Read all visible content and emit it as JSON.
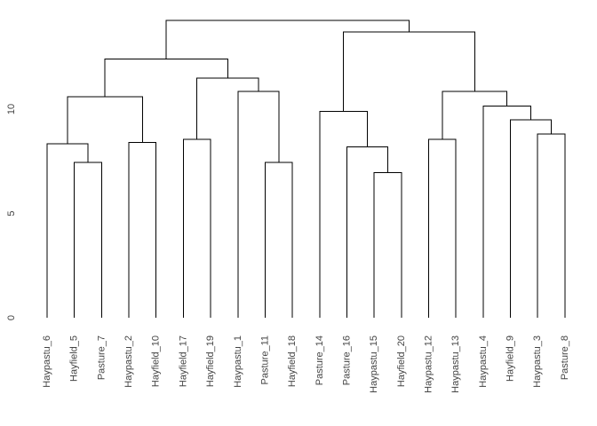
{
  "figure": {
    "background_color": "#ffffff",
    "line_color": "#000000",
    "text_color": "#444444"
  },
  "chart_data": {
    "type": "dendrogram",
    "orientation": "vertical",
    "title": "",
    "xlabel": "",
    "ylabel": "",
    "grid": false,
    "legend": false,
    "y_axis": {
      "ticks": [
        0,
        5,
        10
      ],
      "range": [
        0,
        14.5
      ],
      "label_rotation_deg": -90
    },
    "leaf_label_rotation_deg": -90,
    "leaves": [
      "Haypastu_6",
      "Hayfield_5",
      "Pasture_7",
      "Haypastu_2",
      "Hayfield_10",
      "Hayfield_17",
      "Hayfield_19",
      "Haypastu_1",
      "Pasture_11",
      "Hayfield_18",
      "Pasture_14",
      "Pasture_16",
      "Haypastu_15",
      "Hayfield_20",
      "Haypastu_12",
      "Haypastu_13",
      "Haypastu_4",
      "Hayfield_9",
      "Haypastu_3",
      "Pasture_8"
    ],
    "tree": {
      "h": 14.25,
      "c": [
        {
          "h": 12.4,
          "c": [
            {
              "h": 10.6,
              "c": [
                {
                  "h": 8.35,
                  "c": [
                    "Haypastu_6",
                    {
                      "h": 7.45,
                      "c": [
                        "Hayfield_5",
                        "Pasture_7"
                      ]
                    }
                  ]
                },
                {
                  "h": 8.4,
                  "c": [
                    "Haypastu_2",
                    "Hayfield_10"
                  ]
                }
              ]
            },
            {
              "h": 11.5,
              "c": [
                {
                  "h": 8.55,
                  "c": [
                    "Hayfield_17",
                    "Hayfield_19"
                  ]
                },
                {
                  "h": 10.85,
                  "c": [
                    "Haypastu_1",
                    {
                      "h": 7.45,
                      "c": [
                        "Pasture_11",
                        "Hayfield_18"
                      ]
                    }
                  ]
                }
              ]
            }
          ]
        },
        {
          "h": 13.7,
          "c": [
            {
              "h": 9.9,
              "c": [
                "Pasture_14",
                {
                  "h": 8.2,
                  "c": [
                    "Pasture_16",
                    {
                      "h": 6.95,
                      "c": [
                        "Haypastu_15",
                        "Hayfield_20"
                      ]
                    }
                  ]
                }
              ]
            },
            {
              "h": 10.85,
              "c": [
                {
                  "h": 8.55,
                  "c": [
                    "Haypastu_12",
                    "Haypastu_13"
                  ]
                },
                {
                  "h": 10.15,
                  "c": [
                    "Haypastu_4",
                    {
                      "h": 9.5,
                      "c": [
                        "Hayfield_9",
                        {
                          "h": 8.8,
                          "c": [
                            "Haypastu_3",
                            "Pasture_8"
                          ]
                        }
                      ]
                    }
                  ]
                }
              ]
            }
          ]
        }
      ]
    }
  }
}
